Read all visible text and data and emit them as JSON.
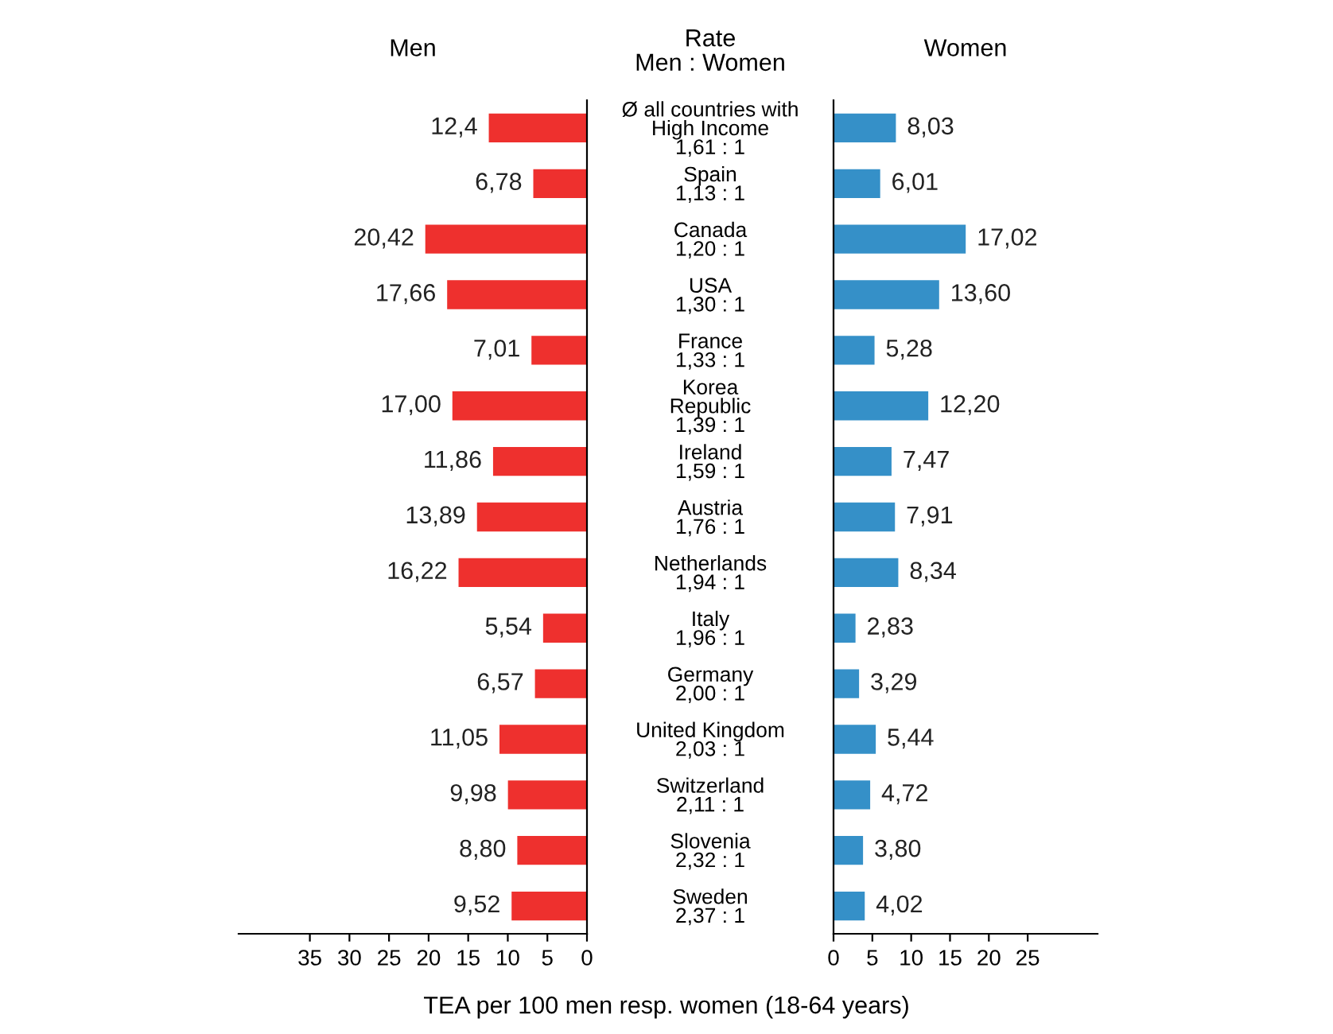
{
  "chart_data": [
    {
      "type": "bar",
      "orientation": "horizontal",
      "title": "Men",
      "xlabel": "TEA per 100 men resp. women (18-64 years)",
      "annotations": [
        "Rate\nMen : Women"
      ],
      "categories": [
        "Ø all countries with\nHigh Income\n1,61 : 1",
        "Spain\n1,13 : 1",
        "Canada\n1,20 : 1",
        "USA\n1,30 : 1",
        "France\n1,33 : 1",
        "Korea\nRepublic\n1,39 : 1",
        "Ireland\n1,59 : 1",
        "Austria\n1,76 : 1",
        "Netherlands\n1,94 : 1",
        "Italy\n1,96 : 1",
        "Germany\n2,00 : 1",
        "United Kingdom\n2,03 : 1",
        "Switzerland\n2,11 : 1",
        "Slovenia\n2,32 : 1",
        "Sweden\n2,37 : 1"
      ],
      "series": [
        {
          "color": "#ee302e",
          "values": [
            12.4,
            6.78,
            20.42,
            17.66,
            7.01,
            17.0,
            11.86,
            13.89,
            16.22,
            5.54,
            6.57,
            11.05,
            9.98,
            8.8,
            9.52
          ],
          "value_labels": [
            "12,4",
            "6,78",
            "20,42",
            "17,66",
            "7,01",
            "17,00",
            "11,86",
            "13,89",
            "16,22",
            "5,54",
            "6,57",
            "11,05",
            "9,98",
            "8,80",
            "9,52"
          ]
        }
      ],
      "xlim": [
        44,
        0
      ],
      "xticks": [
        35,
        30,
        25,
        20,
        15,
        10,
        5,
        0
      ],
      "grid": false
    },
    {
      "type": "bar",
      "orientation": "horizontal",
      "title": "Women",
      "categories": [
        null,
        null,
        null,
        null,
        null,
        null,
        null,
        null,
        null,
        null,
        null,
        null,
        null,
        null,
        null
      ],
      "series": [
        {
          "color": "#3590c8",
          "values": [
            8.03,
            6.01,
            17.02,
            13.6,
            5.28,
            12.2,
            7.47,
            7.91,
            8.34,
            2.83,
            3.29,
            5.44,
            4.72,
            3.8,
            4.02
          ],
          "value_labels": [
            "8,03",
            "6,01",
            "17,02",
            "13,60",
            "5,28",
            "12,20",
            "7,47",
            "7,91",
            "8,34",
            "2,83",
            "3,29",
            "5,44",
            "4,72",
            "3,80",
            "4,02"
          ]
        }
      ],
      "xlim": [
        0,
        34
      ],
      "xticks": [
        0,
        5,
        10,
        15,
        20,
        25
      ],
      "grid": false
    }
  ]
}
